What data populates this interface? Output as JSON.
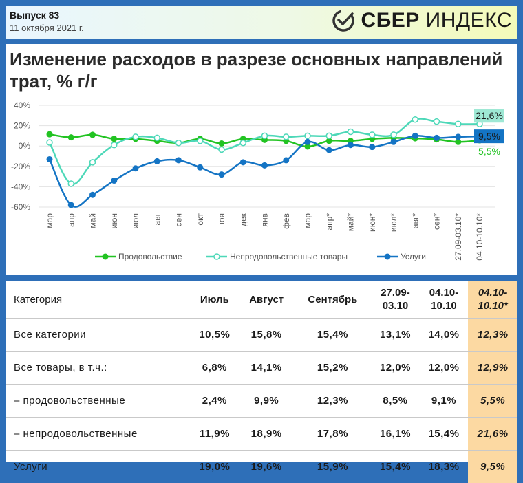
{
  "header": {
    "issue": "Выпуск 83",
    "date": "11 октября 2021 г.",
    "logo_bold": "СБЕР",
    "logo_light": "ИНДЕКС",
    "logo_icon": "sber-check-icon"
  },
  "chart_data": {
    "type": "line",
    "title": "Изменение расходов в разрезе основных направлений трат, % г/г",
    "categories": [
      "мар",
      "апр",
      "май",
      "июн",
      "июл",
      "авг",
      "сен",
      "окт",
      "ноя",
      "дек",
      "янв",
      "фев",
      "мар",
      "апр*",
      "май*",
      "июн*",
      "июл*",
      "авг*",
      "сен*",
      "27.09-03.10*",
      "04.10-10.10*"
    ],
    "y_ticks": [
      "40%",
      "20%",
      "0%",
      "-20%",
      "-40%",
      "-60%"
    ],
    "ylim": [
      -60,
      40
    ],
    "grid": true,
    "legend_position": "bottom",
    "series": [
      {
        "name": "Продовольствие",
        "color": "#22c322",
        "marker": "filled",
        "values": [
          11.5,
          8.5,
          11,
          7,
          7,
          5,
          3,
          7,
          2.5,
          7,
          6,
          5,
          -0.5,
          5,
          5,
          7,
          8,
          7.5,
          6.5,
          4,
          5.5
        ]
      },
      {
        "name": "Непродовольственные товары",
        "color": "#4dd8b8",
        "marker": "hollow",
        "values": [
          3.5,
          -37,
          -16,
          1,
          9,
          8,
          3,
          5,
          -3.5,
          3,
          10,
          9,
          10,
          10,
          14,
          11,
          11,
          26,
          24,
          21.6,
          21.6
        ]
      },
      {
        "name": "Услуги",
        "color": "#1474c4",
        "marker": "filled",
        "values": [
          -13,
          -58,
          -48,
          -34,
          -22,
          -15,
          -14,
          -21,
          -28,
          -16,
          -19,
          -14,
          4,
          -4,
          1,
          -1,
          4,
          10,
          8,
          9,
          9.5
        ]
      }
    ],
    "end_labels": [
      {
        "text": "21,6%",
        "series": 1,
        "bg": "#9ee8d4",
        "color": "#1a1a1a"
      },
      {
        "text": "9,5%",
        "series": 2,
        "bg": "#1474c4",
        "color": "#1a1a1a"
      },
      {
        "text": "5,5%",
        "series": 0,
        "bg": "none",
        "color": "#22c322"
      }
    ]
  },
  "table": {
    "headers": [
      "Категория",
      "Июль",
      "Август",
      "Сентябрь",
      "27.09-\n03.10",
      "04.10-\n10.10",
      "04.10-\n10.10*"
    ],
    "rows": [
      {
        "label": "Все категории",
        "values": [
          "10,5%",
          "15,8%",
          "15,4%",
          "13,1%",
          "14,0%",
          "12,3%"
        ]
      },
      {
        "label": "Все товары, в т.ч.:",
        "values": [
          "6,8%",
          "14,1%",
          "15,2%",
          "12,0%",
          "12,0%",
          "12,9%"
        ]
      },
      {
        "label": "– продовольственные",
        "values": [
          "2,4%",
          "9,9%",
          "12,3%",
          "8,5%",
          "9,1%",
          "5,5%"
        ]
      },
      {
        "label": "– непродовольственные",
        "values": [
          "11,9%",
          "18,9%",
          "17,8%",
          "16,1%",
          "15,4%",
          "21,6%"
        ]
      },
      {
        "label": "Услуги",
        "values": [
          "19,0%",
          "19,6%",
          "15,9%",
          "15,4%",
          "18,3%",
          "9,5%"
        ]
      }
    ],
    "highlight_color": "#fcd9a2"
  }
}
